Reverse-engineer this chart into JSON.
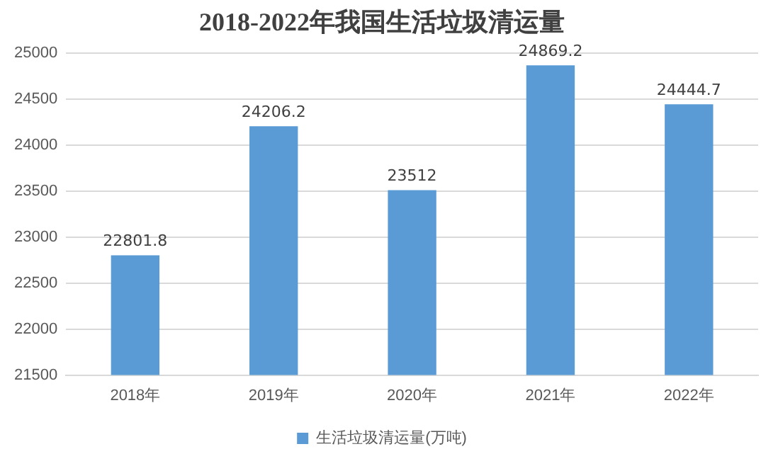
{
  "chart_data": {
    "type": "bar",
    "title": "2018-2022年我国生活垃圾清运量",
    "categories": [
      "2018年",
      "2019年",
      "2020年",
      "2021年",
      "2022年"
    ],
    "series": [
      {
        "name": "生活垃圾清运量(万吨)",
        "color": "#5b9bd5",
        "values": [
          22801.8,
          24206.2,
          23512,
          24869.2,
          24444.7
        ]
      }
    ],
    "ylim": [
      21500,
      25000
    ],
    "yticks": [
      21500,
      22000,
      22500,
      23000,
      23500,
      24000,
      24500,
      25000
    ],
    "grid": "y",
    "legend": "bottom",
    "data_labels": true
  }
}
